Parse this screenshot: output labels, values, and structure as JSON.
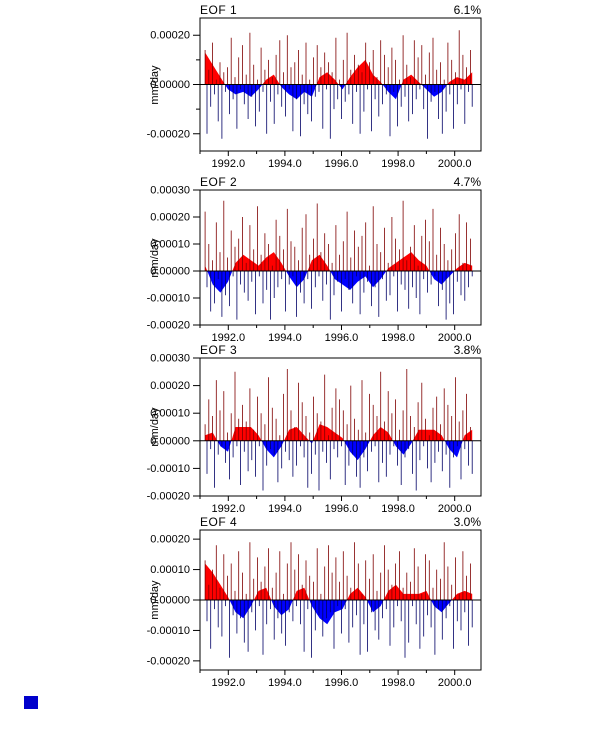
{
  "chart_data": {
    "type": "line",
    "description": "Four stacked EOF principal-component time series panels; thin vertical spikes are the raw PC series, red/blue filled wedges are the low-pass filtered series (red positive, blue negative).",
    "value_unit": "mm/day",
    "value_scale": 1e-05,
    "x_axis": {
      "label": "",
      "lim": [
        1991.0,
        2000.93
      ],
      "ticks": [
        {
          "value": 1992.0,
          "label": "1992.0"
        },
        {
          "value": 1994.0,
          "label": "1994.0"
        },
        {
          "value": 1996.0,
          "label": "1996.0"
        },
        {
          "value": 1998.0,
          "label": "1998.0"
        },
        {
          "value": 2000.0,
          "label": "2000.0"
        }
      ],
      "minor_ticks": [
        1991.0,
        1993.0,
        1995.0,
        1997.0,
        1999.0
      ]
    },
    "colors": {
      "positive_fill": "#ff0000",
      "negative_fill": "#0000ff",
      "positive_spike": "#7f0000",
      "negative_spike": "#000066",
      "axis": "#000000",
      "marker": "#0000cc"
    },
    "panels": [
      {
        "title": "EOF 1",
        "percent": "6.1%",
        "ylabel": "mm/day",
        "ylim": [
          -27,
          27
        ],
        "yticks": [
          {
            "value": 20,
            "label": "0.00020"
          },
          {
            "value": 0,
            "label": "0.00000"
          },
          {
            "value": -20,
            "label": "-0.00020"
          }
        ],
        "yminor": [
          10,
          -10
        ],
        "x_start": 1991.18,
        "x_end": 2000.62,
        "raw": {
          "values": [
            14,
            -20,
            6,
            -9,
            17,
            -4,
            2,
            -15,
            9,
            -22,
            5,
            -3,
            7,
            -12,
            19,
            -6,
            3,
            -18,
            11,
            -2,
            16,
            -8,
            4,
            -14,
            21,
            -5,
            8,
            -17,
            2,
            -11,
            15,
            -3,
            6,
            -20,
            10,
            -7,
            3,
            -16,
            12,
            -4,
            18,
            -9,
            5,
            -13,
            20,
            -2,
            7,
            -19,
            9,
            -6,
            14,
            -21,
            4,
            -8,
            17,
            -12,
            2,
            -15,
            11,
            -5,
            16,
            -3,
            7,
            -18,
            13,
            -2,
            9,
            -22,
            5,
            -10,
            19,
            -6,
            2,
            -14,
            10,
            -7,
            21,
            -4,
            6,
            -16,
            12,
            -3,
            8,
            -20,
            5,
            -11,
            17,
            -2,
            9,
            -19,
            14,
            -6,
            3,
            -13,
            18,
            -8,
            12,
            -4,
            7,
            -21,
            15,
            -3,
            10,
            -17,
            2,
            -9,
            20,
            -5,
            8,
            -15,
            3,
            -12,
            18,
            -6,
            11,
            -2,
            16,
            -10,
            4,
            -22,
            13,
            -7,
            19,
            -3,
            6,
            -14,
            9,
            -20,
            2,
            -11,
            17,
            -4,
            10,
            -18,
            5,
            -8,
            22,
            -2,
            12,
            -16,
            7,
            -3,
            14,
            -9
          ]
        },
        "smooth": {
          "values": [
            13,
            8,
            3,
            -2,
            -4,
            -3,
            -5,
            -2,
            2,
            4,
            -1,
            -4,
            -6,
            -3,
            -5,
            3,
            5,
            2,
            -2,
            3,
            7,
            10,
            4,
            1,
            -3,
            -6,
            2,
            4,
            1,
            -2,
            -5,
            -3,
            1,
            3,
            2,
            5
          ]
        }
      },
      {
        "title": "EOF 2",
        "percent": "4.7%",
        "ylabel": "mm/day",
        "ylim": [
          -20,
          30
        ],
        "yticks": [
          {
            "value": 30,
            "label": "0.00030"
          },
          {
            "value": 20,
            "label": "0.00020"
          },
          {
            "value": 10,
            "label": "0.00010"
          },
          {
            "value": 0,
            "label": "0.00000"
          },
          {
            "value": -10,
            "label": "-0.00010"
          },
          {
            "value": -20,
            "label": "-0.00020"
          }
        ],
        "yminor": [],
        "x_start": 1991.18,
        "x_end": 2000.62,
        "raw": {
          "values": [
            22,
            -6,
            10,
            -15,
            4,
            -12,
            18,
            -3,
            7,
            -17,
            26,
            -9,
            5,
            -13,
            15,
            -2,
            9,
            -18,
            12,
            -5,
            20,
            -8,
            3,
            -11,
            17,
            -4,
            8,
            -16,
            24,
            -2,
            6,
            -12,
            14,
            -7,
            10,
            -18,
            2,
            -10,
            19,
            -6,
            13,
            -3,
            8,
            -15,
            23,
            -5,
            11,
            -2,
            9,
            -17,
            4,
            -8,
            16,
            -12,
            21,
            -3,
            6,
            -14,
            12,
            -6,
            25,
            -2,
            7,
            -11,
            14,
            -5,
            10,
            -18,
            3,
            -9,
            17,
            -4,
            6,
            -15,
            11,
            -3,
            22,
            -7,
            5,
            -12,
            15,
            -2,
            9,
            -16,
            13,
            -8,
            18,
            -4,
            2,
            -13,
            24,
            -6,
            10,
            -17,
            7,
            -3,
            16,
            -11,
            3,
            -9,
            20,
            -2,
            12,
            -15,
            8,
            -5,
            26,
            -7,
            4,
            -14,
            9,
            -6,
            17,
            -10,
            2,
            -16,
            13,
            -3,
            19,
            -8,
            11,
            -5,
            23,
            -2,
            6,
            -13,
            16,
            -7,
            10,
            -18,
            4,
            -12,
            8,
            -16,
            14,
            -4,
            21,
            -9,
            3,
            -11,
            18,
            -6,
            12,
            -2
          ]
        },
        "smooth": {
          "values": [
            2,
            -5,
            -8,
            -4,
            3,
            6,
            4,
            2,
            5,
            7,
            3,
            -2,
            -6,
            -3,
            4,
            6,
            2,
            -3,
            -5,
            -7,
            -4,
            -2,
            -6,
            -3,
            1,
            3,
            5,
            7,
            4,
            2,
            -3,
            -5,
            -2,
            1,
            3,
            2
          ]
        }
      },
      {
        "title": "EOF 3",
        "percent": "3.8%",
        "ylabel": "mm/day",
        "ylim": [
          -20,
          30
        ],
        "yticks": [
          {
            "value": 30,
            "label": "0.00030"
          },
          {
            "value": 20,
            "label": "0.00020"
          },
          {
            "value": 10,
            "label": "0.00010"
          },
          {
            "value": 0,
            "label": "0.00000"
          },
          {
            "value": -10,
            "label": "-0.00010"
          },
          {
            "value": -20,
            "label": "-0.00020"
          }
        ],
        "yminor": [],
        "x_start": 1991.18,
        "x_end": 2000.62,
        "raw": {
          "values": [
            6,
            -12,
            15,
            -3,
            9,
            -17,
            22,
            -5,
            11,
            -2,
            18,
            -8,
            3,
            -14,
            10,
            -6,
            25,
            -2,
            8,
            -16,
            13,
            -4,
            7,
            -11,
            19,
            -7,
            4,
            -13,
            16,
            -2,
            10,
            -18,
            6,
            -9,
            23,
            -3,
            12,
            -5,
            8,
            -15,
            2,
            -10,
            17,
            -4,
            26,
            -7,
            11,
            -13,
            5,
            -9,
            21,
            -2,
            14,
            -6,
            9,
            -17,
            3,
            -12,
            16,
            -5,
            10,
            -18,
            7,
            -4,
            24,
            -8,
            2,
            -14,
            12,
            -3,
            19,
            -6,
            15,
            -2,
            11,
            -16,
            6,
            -9,
            20,
            -5,
            8,
            -13,
            4,
            -17,
            22,
            -6,
            3,
            -11,
            17,
            -4,
            13,
            -2,
            9,
            -15,
            25,
            -8,
            7,
            -13,
            18,
            -5,
            10,
            -2,
            15,
            -9,
            4,
            -16,
            11,
            -6,
            26,
            -3,
            9,
            -12,
            5,
            -18,
            14,
            -7,
            21,
            -2,
            8,
            -10,
            2,
            -15,
            12,
            -8,
            16,
            -4,
            6,
            -11,
            19,
            -5,
            13,
            -17,
            9,
            -6,
            23,
            -2,
            7,
            -14,
            11,
            -3,
            17,
            -9,
            5,
            -12
          ]
        },
        "smooth": {
          "values": [
            2,
            3,
            -2,
            -4,
            5,
            5,
            5,
            2,
            -3,
            -6,
            -2,
            4,
            5,
            2,
            -1,
            6,
            5,
            3,
            1,
            -4,
            -7,
            -3,
            2,
            5,
            3,
            -2,
            -5,
            -1,
            4,
            4,
            4,
            2,
            -3,
            -6,
            2,
            4
          ]
        }
      },
      {
        "title": "EOF 4",
        "percent": "3.0%",
        "ylabel": "mm/day",
        "ylim": [
          -23,
          23
        ],
        "yticks": [
          {
            "value": 20,
            "label": "0.00020"
          },
          {
            "value": 10,
            "label": "0.00010"
          },
          {
            "value": 0,
            "label": "0.00000"
          },
          {
            "value": -10,
            "label": "-0.00010"
          },
          {
            "value": -20,
            "label": "-0.00020"
          }
        ],
        "yminor": [],
        "x_start": 1991.18,
        "x_end": 2000.62,
        "raw": {
          "values": [
            13,
            -7,
            5,
            -16,
            10,
            -3,
            18,
            -9,
            4,
            -12,
            15,
            -2,
            8,
            -19,
            12,
            -5,
            3,
            -11,
            16,
            -6,
            9,
            -14,
            2,
            -17,
            19,
            -4,
            7,
            -10,
            14,
            -2,
            6,
            -18,
            11,
            -8,
            17,
            -3,
            4,
            -13,
            9,
            -6,
            16,
            -11,
            2,
            -15,
            12,
            -4,
            19,
            -7,
            10,
            -2,
            15,
            -8,
            5,
            -17,
            13,
            -3,
            8,
            -19,
            6,
            -10,
            17,
            -5,
            2,
            -12,
            11,
            -6,
            18,
            -4,
            9,
            -16,
            14,
            -2,
            6,
            -11,
            16,
            -3,
            8,
            -14,
            4,
            -9,
            19,
            -5,
            12,
            -18,
            2,
            -8,
            13,
            -17,
            7,
            -4,
            15,
            -10,
            3,
            -13,
            9,
            -6,
            18,
            -3,
            10,
            -15,
            5,
            -9,
            12,
            -2,
            16,
            -7,
            4,
            -19,
            9,
            -14,
            6,
            -2,
            17,
            -8,
            11,
            -16,
            2,
            -12,
            15,
            -5,
            13,
            -9,
            4,
            -18,
            10,
            -3,
            7,
            -13,
            19,
            -6,
            11,
            -2,
            5,
            -16,
            14,
            -7,
            2,
            -10,
            16,
            -4,
            8,
            -15,
            12,
            -9
          ]
        },
        "smooth": {
          "values": [
            12,
            9,
            5,
            1,
            -4,
            -6,
            -2,
            3,
            4,
            -2,
            -5,
            -3,
            3,
            4,
            -2,
            -6,
            -8,
            -4,
            -3,
            2,
            4,
            1,
            -4,
            -2,
            3,
            5,
            2,
            2,
            2,
            3,
            -2,
            -4,
            -1,
            2,
            3,
            2
          ]
        }
      }
    ]
  }
}
